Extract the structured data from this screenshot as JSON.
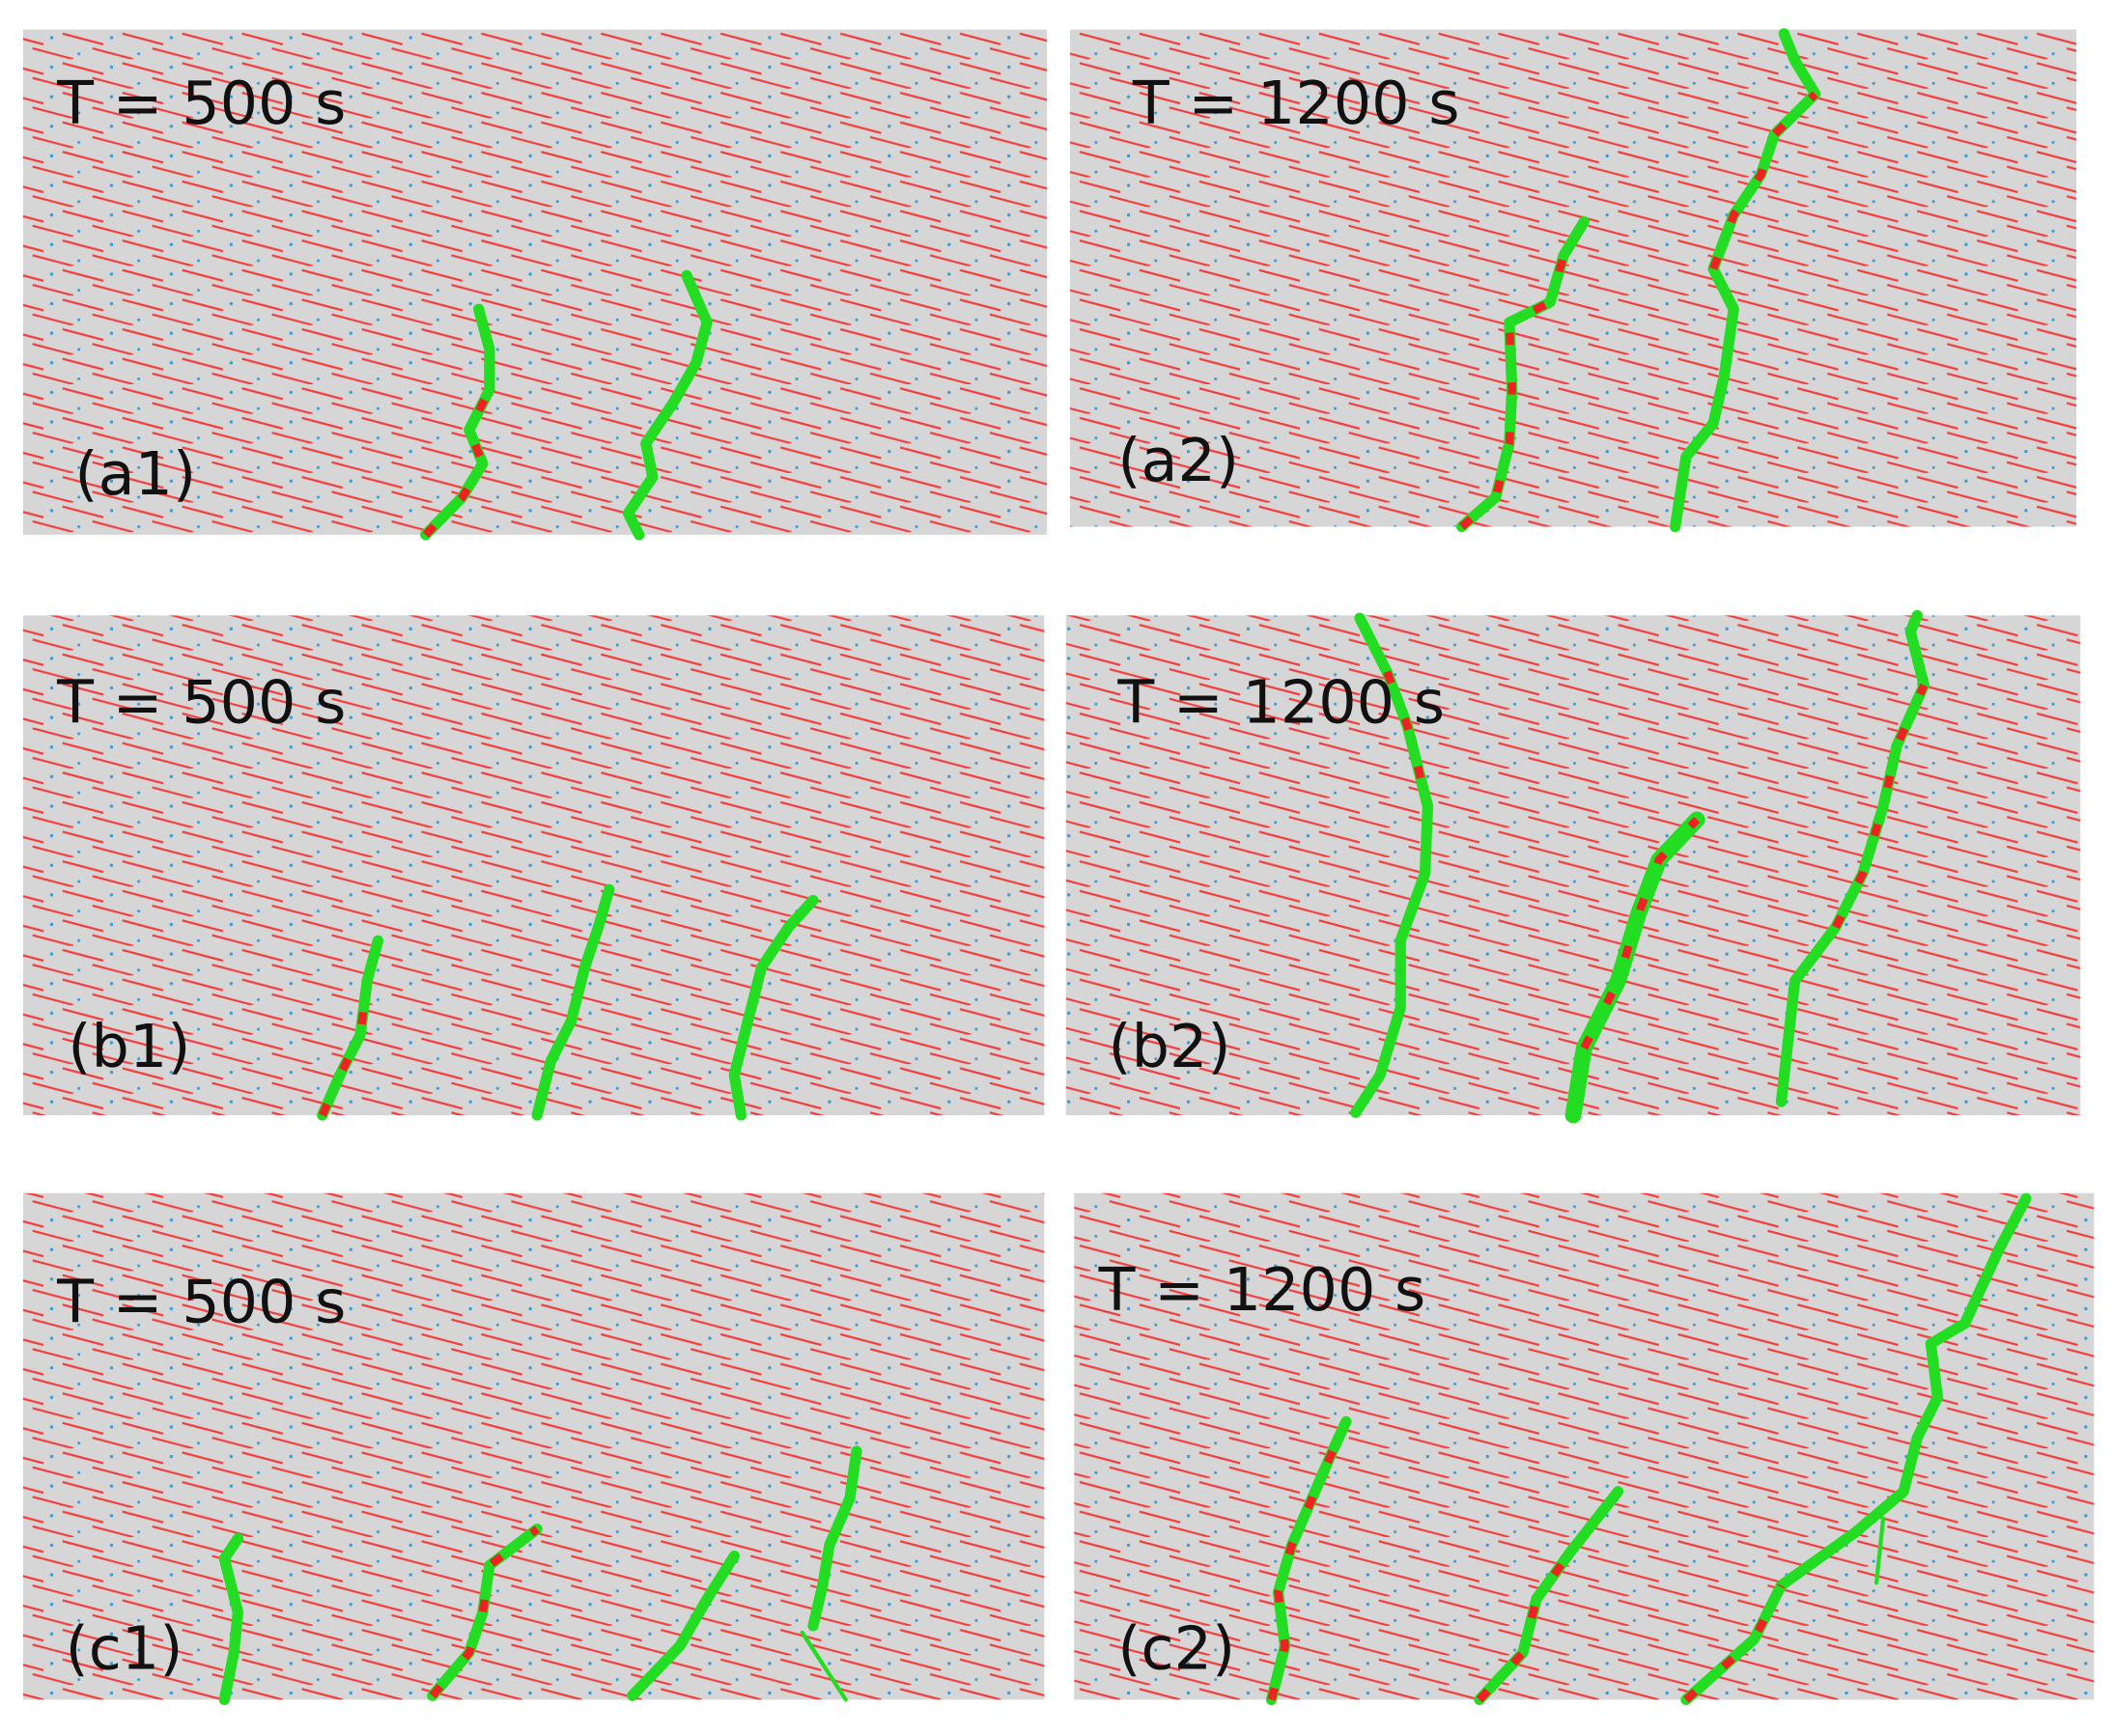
{
  "panels": [
    {
      "time": "T = 500 s",
      "label": "(a1)"
    },
    {
      "time": "T = 1200 s",
      "label": "(a2)"
    },
    {
      "time": "T = 500 s",
      "label": "(b1)"
    },
    {
      "time": "T = 1200 s",
      "label": "(b2)"
    },
    {
      "time": "T = 500 s",
      "label": "(c1)"
    },
    {
      "time": "T = 1200 s",
      "label": "(c2)"
    }
  ]
}
